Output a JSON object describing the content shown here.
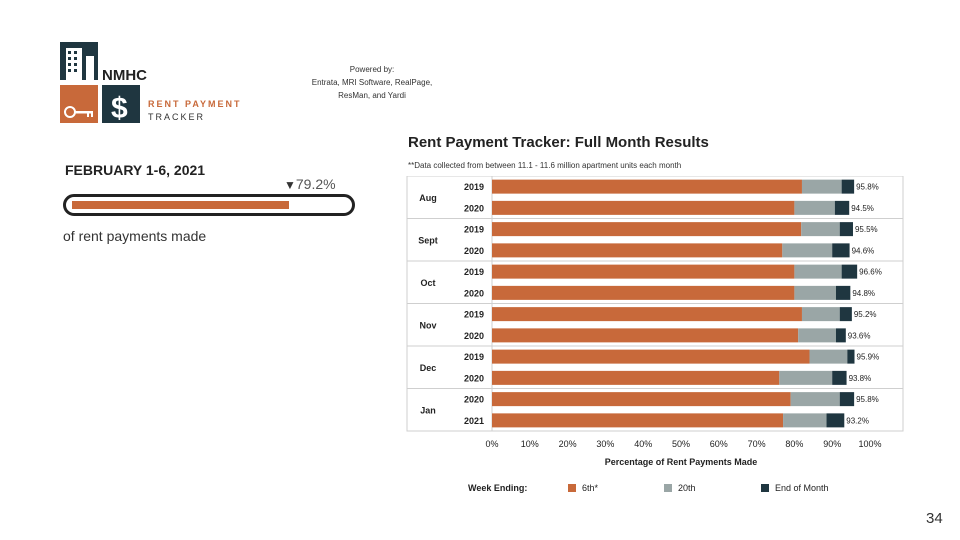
{
  "logo": {
    "org": "NMHC",
    "line1": "RENT PAYMENT",
    "line2": "TRACKER"
  },
  "powered_by": {
    "lines": [
      "Powered by:",
      "Entrata, MRI Software, RealPage,",
      "ResMan, and Yardi"
    ]
  },
  "kpi": {
    "title": "FEBRUARY 1-6, 2021",
    "marker": "▼",
    "value_text": "79.2%",
    "value": 79.2,
    "caption": "of rent payments made"
  },
  "colors": {
    "sixth": "#c8693a",
    "twentieth": "#9aa6a6",
    "end_of_month": "#1f3640",
    "divider": "#cfcfcf"
  },
  "chart_data": {
    "type": "bar",
    "orientation": "horizontal",
    "stacked": true,
    "title": "Rent Payment Tracker: Full Month Results",
    "subtitle": "**Data collected from between 11.1 - 11.6 million apartment units each month",
    "xlabel": "Percentage of Rent Payments Made",
    "xlim": [
      0,
      100
    ],
    "x_ticks": [
      "0%",
      "10%",
      "20%",
      "30%",
      "40%",
      "50%",
      "60%",
      "70%",
      "80%",
      "90%",
      "100%"
    ],
    "legend_title": "Week Ending:",
    "legend_position": "bottom",
    "series_names": [
      "6th*",
      "20th",
      "End of Month"
    ],
    "groups": [
      {
        "month": "Aug",
        "rows": [
          {
            "year": "2019",
            "sixth": 82.0,
            "twentieth": 92.5,
            "total": 95.8,
            "label": "95.8%"
          },
          {
            "year": "2020",
            "sixth": 80.0,
            "twentieth": 90.7,
            "total": 94.5,
            "label": "94.5%"
          }
        ]
      },
      {
        "month": "Sept",
        "rows": [
          {
            "year": "2019",
            "sixth": 81.8,
            "twentieth": 92.0,
            "total": 95.5,
            "label": "95.5%"
          },
          {
            "year": "2020",
            "sixth": 76.8,
            "twentieth": 90.0,
            "total": 94.6,
            "label": "94.6%"
          }
        ]
      },
      {
        "month": "Oct",
        "rows": [
          {
            "year": "2019",
            "sixth": 80.0,
            "twentieth": 92.5,
            "total": 96.6,
            "label": "96.6%"
          },
          {
            "year": "2020",
            "sixth": 80.0,
            "twentieth": 91.0,
            "total": 94.8,
            "label": "94.8%"
          }
        ]
      },
      {
        "month": "Nov",
        "rows": [
          {
            "year": "2019",
            "sixth": 82.0,
            "twentieth": 92.0,
            "total": 95.2,
            "label": "95.2%"
          },
          {
            "year": "2020",
            "sixth": 81.0,
            "twentieth": 91.0,
            "total": 93.6,
            "label": "93.6%"
          }
        ]
      },
      {
        "month": "Dec",
        "rows": [
          {
            "year": "2019",
            "sixth": 84.0,
            "twentieth": 94.0,
            "total": 95.9,
            "label": "95.9%"
          },
          {
            "year": "2020",
            "sixth": 76.0,
            "twentieth": 90.0,
            "total": 93.8,
            "label": "93.8%"
          }
        ]
      },
      {
        "month": "Jan",
        "rows": [
          {
            "year": "2020",
            "sixth": 79.0,
            "twentieth": 92.0,
            "total": 95.8,
            "label": "95.8%"
          },
          {
            "year": "2021",
            "sixth": 77.0,
            "twentieth": 88.5,
            "total": 93.2,
            "label": "93.2%"
          }
        ]
      }
    ]
  },
  "page_number": "34"
}
